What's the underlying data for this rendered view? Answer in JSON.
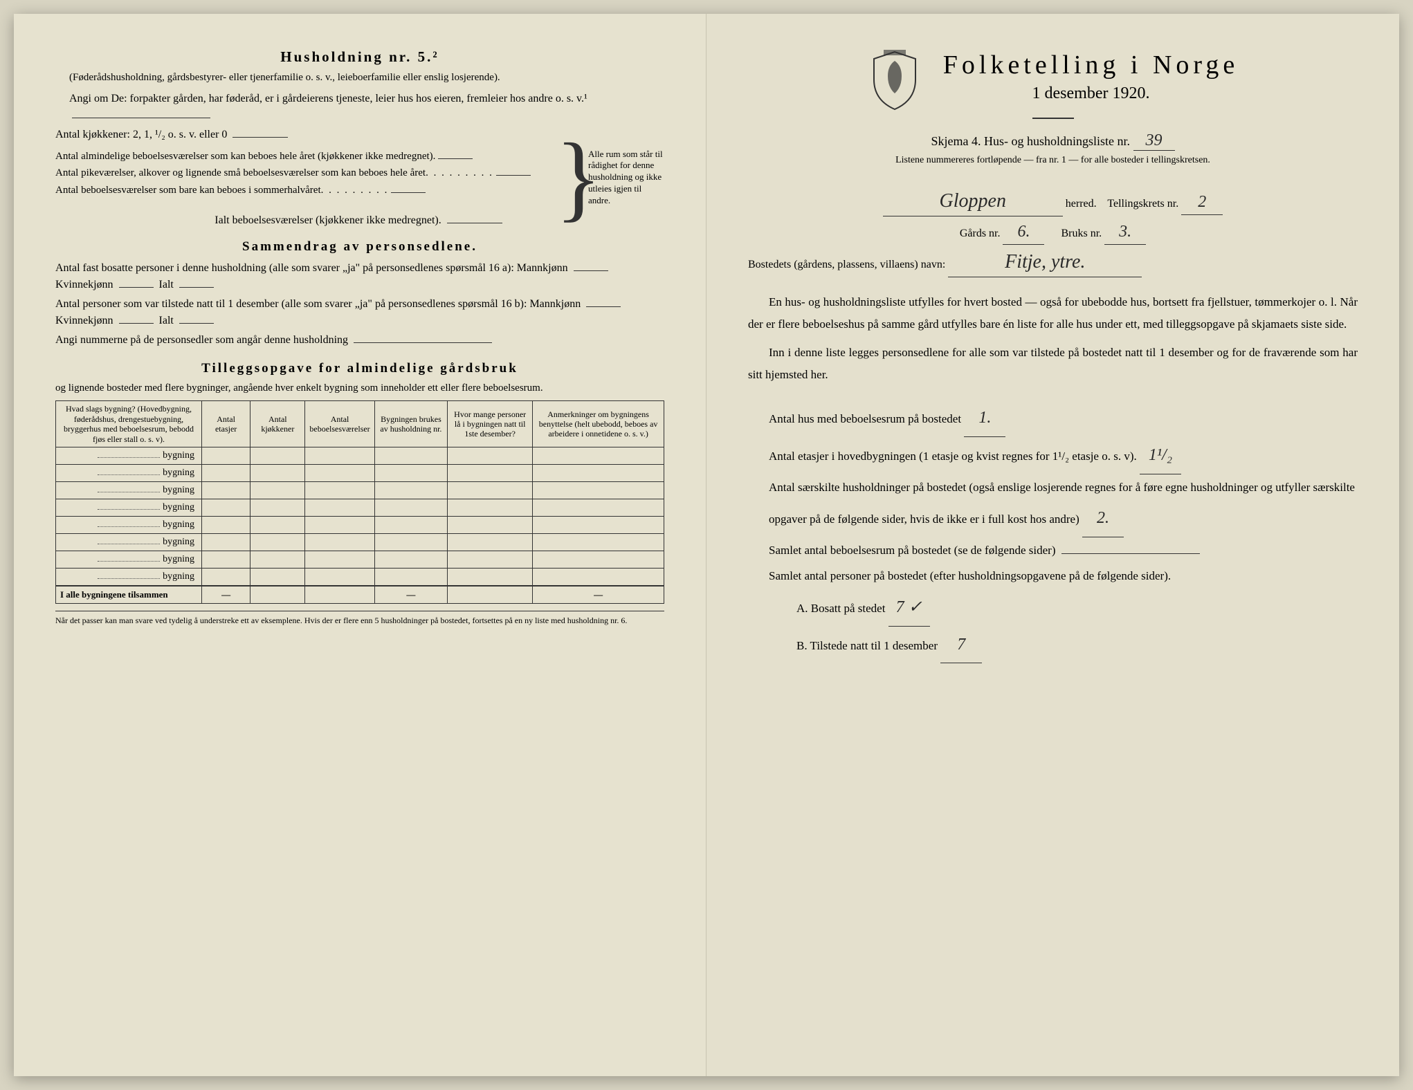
{
  "left": {
    "husholdning_title": "Husholdning nr. 5.²",
    "husholdning_sub": "(Føderådshusholdning, gårdsbestyrer- eller tjenerfamilie o. s. v., leieboerfamilie eller enslig losjerende).",
    "angi_om": "Angi om De: forpakter gården, har føderåd, er i gårdeierens tjeneste, leier hus hos eieren, fremleier hos andre o. s. v.¹",
    "antal_kj": "Antal kjøkkener: 2, 1, ¹/₂ o. s. v. eller 0",
    "brace_lines": [
      "Antal almindelige beboelsesværelser som kan beboes hele året (kjøkkener ikke medregnet).",
      "Antal pikeværelser, alkover og lignende små beboelsesværelser som kan beboes hele året",
      "Antal beboelsesværelser som bare kan beboes i sommerhalvåret"
    ],
    "brace_right": "Alle rum som står til rådighet for denne husholdning og ikke utleies igjen til andre.",
    "ialt": "Ialt  beboelsesværelser (kjøkkener ikke medregnet).",
    "sammendrag_title": "Sammendrag av personsedlene.",
    "sammen_p1": "Antal fast bosatte personer i denne husholdning (alle som svarer „ja\" på personsedlenes spørsmål 16 a): Mannkjønn",
    "kvinne": "Kvinnekjønn",
    "ialt_lbl": "Ialt",
    "sammen_p2": "Antal personer som var tilstede natt til 1 desember (alle som svarer „ja\" på personsedlenes spørsmål 16 b): Mannkjønn",
    "angi_num": "Angi nummerne på de personsedler som angår denne husholdning",
    "tillegg_title": "Tilleggsopgave for almindelige gårdsbruk",
    "tillegg_sub": "og lignende bosteder med flere bygninger, angående hver enkelt bygning som inneholder ett eller flere beboelsesrum.",
    "table": {
      "headers": [
        "Hvad slags bygning?\n(Hovedbygning, føderådshus, drengestuebygning, bryggerhus med beboelsesrum, bebodd fjøs eller stall o. s. v).",
        "Antal etasjer",
        "Antal kjøkkener",
        "Antal beboelsesværelser",
        "Bygningen brukes av husholdning nr.",
        "Hvor mange personer lå i bygningen natt til 1ste desember?",
        "Anmerkninger om bygningens benyttelse (helt ubebodd, beboes av arbeidere i onnetidene o. s. v.)"
      ],
      "row_label": "bygning",
      "sum_label": "I alle bygningene tilsammen",
      "dash": "—",
      "row_count": 8
    },
    "footnote": "Når det passer kan man svare ved tydelig å understreke ett av eksemplene.\nHvis der er flere enn 5 husholdninger på bostedet, fortsettes på en ny liste med husholdning nr. 6."
  },
  "right": {
    "main_title": "Folketelling i Norge",
    "sub_title": "1 desember 1920.",
    "skjema_line": "Skjema 4. Hus- og husholdningsliste nr.",
    "list_nr": "39",
    "skjema_note": "Listene nummereres fortløpende — fra nr. 1 — for alle bosteder i tellingskretsen.",
    "herred_value": "Gloppen",
    "herred_lbl": "herred.",
    "krets_lbl": "Tellingskrets nr.",
    "krets_val": "2",
    "gards_lbl": "Gårds nr.",
    "gards_val": "6.",
    "bruks_lbl": "Bruks nr.",
    "bruks_val": "3.",
    "bosted_lbl": "Bostedets (gårdens, plassens, villaens) navn:",
    "bosted_val": "Fitje, ytre.",
    "para1": "En hus- og husholdningsliste utfylles for hvert bosted — også for ubebodde hus, bortsett fra fjellstuer, tømmerkojer o. l. Når der er flere beboelseshus på samme gård utfylles bare én liste for alle hus under ett, med tilleggsopgave på skjamaets siste side.",
    "para2": "Inn i denne liste legges personsedlene for alle som var tilstede på bostedet natt til 1 desember og for de fraværende som har sitt hjemsted her.",
    "q1_lbl": "Antal hus med beboelsesrum på bostedet",
    "q1_val": "1.",
    "q2_lbl_a": "Antal etasjer i hovedbygningen (1 etasje og kvist regnes for 1¹/₂ etasje o. s. v).",
    "q2_val": "1¹/₂",
    "q3_lbl": "Antal særskilte husholdninger på bostedet (også enslige losjerende regnes for å føre egne husholdninger og utfyller særskilte opgaver på de følgende sider, hvis de ikke er i full kost hos andre)",
    "q3_val": "2.",
    "q4_lbl": "Samlet antal beboelsesrum på bostedet (se de følgende sider)",
    "q5_lbl": "Samlet antal personer på bostedet (efter husholdningsopgavene på de følgende sider).",
    "qA_lbl": "A. Bosatt på stedet",
    "qA_val": "7 ✓",
    "qB_lbl": "B. Tilstede natt til 1 desember",
    "qB_val": "7"
  },
  "colors": {
    "paper": "#e6e2cf",
    "ink": "#2a2a2a",
    "border": "#333333"
  }
}
